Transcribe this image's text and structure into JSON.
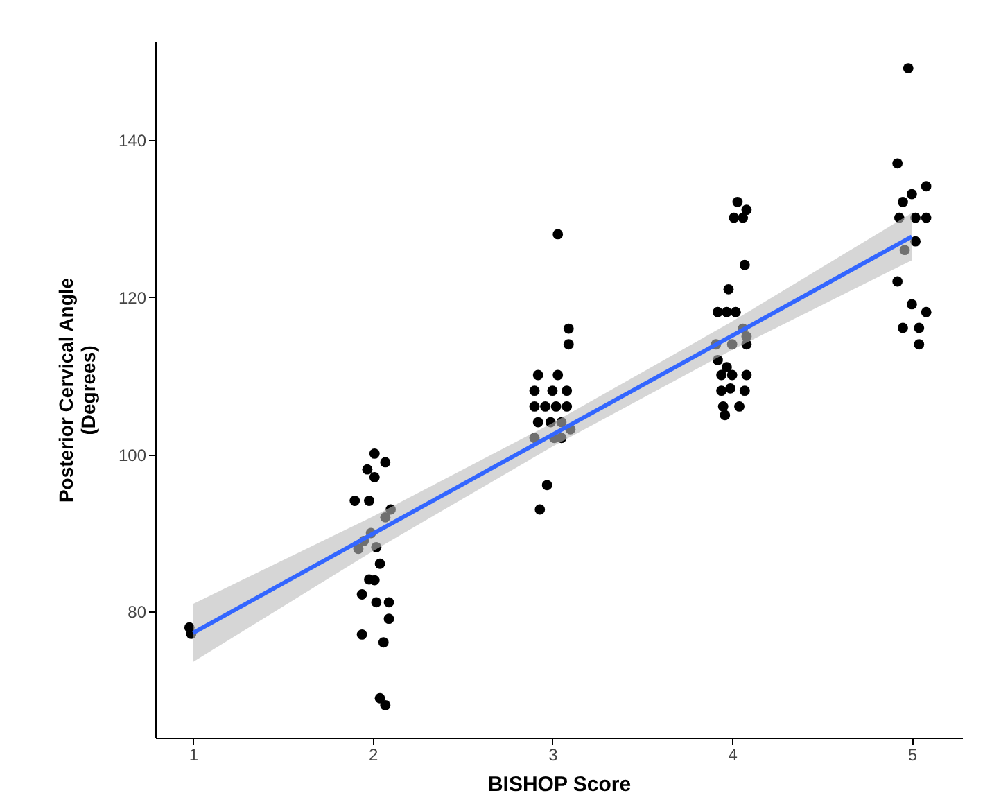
{
  "chart_data": {
    "type": "scatter",
    "xlabel": "BISHOP Score",
    "ylabel": "Posterior Cervical Angle\n(Degrees)",
    "xlim": [
      0.79,
      5.28
    ],
    "xticks": [
      1,
      2,
      3,
      4,
      5
    ],
    "ylim": [
      64,
      152.5
    ],
    "yticks": [
      80,
      100,
      120,
      140
    ],
    "grid": false,
    "series": [
      {
        "marker": "circle",
        "color": "#000000",
        "x": [
          0.98,
          0.99,
          2.01,
          2.07,
          1.97,
          2.01,
          1.9,
          1.98,
          2.1,
          2.07,
          1.99,
          1.95,
          1.92,
          2.02,
          2.04,
          1.98,
          2.01,
          1.94,
          2.02,
          2.09,
          2.09,
          1.94,
          2.06,
          2.04,
          2.07,
          3.03,
          3.09,
          3.09,
          2.92,
          3.03,
          2.9,
          3.0,
          3.08,
          2.9,
          2.96,
          3.02,
          3.08,
          2.92,
          2.99,
          3.05,
          3.1,
          2.9,
          3.01,
          3.05,
          2.97,
          2.93,
          4.03,
          4.08,
          4.01,
          4.06,
          4.07,
          3.98,
          3.92,
          3.97,
          4.02,
          4.06,
          4.08,
          3.91,
          4.0,
          4.08,
          3.92,
          3.97,
          3.94,
          4.0,
          4.08,
          3.94,
          3.99,
          4.07,
          3.95,
          4.04,
          3.96,
          4.98,
          4.92,
          5.08,
          5.0,
          4.95,
          4.93,
          5.02,
          5.08,
          5.02,
          4.96,
          4.92,
          5.0,
          5.08,
          4.95,
          5.04,
          5.04
        ],
        "values": [
          78.0,
          77.2,
          100.1,
          99.0,
          98.1,
          97.1,
          94.1,
          94.1,
          93.0,
          92.0,
          90.0,
          89.0,
          88.0,
          88.2,
          86.1,
          84.1,
          84.0,
          82.2,
          81.2,
          81.2,
          79.1,
          77.1,
          76.1,
          69.0,
          68.1,
          128.0,
          116.0,
          114.0,
          110.1,
          110.1,
          108.1,
          108.1,
          108.1,
          106.1,
          106.1,
          106.1,
          106.1,
          104.1,
          104.1,
          104.1,
          103.2,
          102.1,
          102.1,
          102.1,
          96.1,
          93.0,
          132.1,
          131.1,
          130.1,
          130.1,
          124.1,
          121.0,
          118.1,
          118.1,
          118.1,
          116.0,
          115.0,
          114.0,
          114.0,
          114.0,
          112.0,
          111.1,
          110.1,
          110.1,
          110.1,
          108.1,
          108.4,
          108.1,
          106.1,
          106.1,
          105.0,
          149.1,
          137.0,
          134.1,
          133.1,
          132.1,
          130.1,
          130.1,
          130.1,
          127.1,
          126.0,
          122.0,
          119.1,
          118.1,
          116.1,
          116.1,
          114.0
        ]
      },
      {
        "type": "line",
        "color": "#3366ff",
        "x": [
          1,
          2,
          3,
          4,
          5
        ],
        "values": [
          77.3,
          89.9,
          102.5,
          115.1,
          127.7
        ],
        "lower": [
          73.6,
          87.7,
          101.0,
          113.3,
          124.7
        ],
        "upper": [
          81.0,
          92.1,
          104.0,
          116.9,
          130.7
        ]
      }
    ]
  }
}
